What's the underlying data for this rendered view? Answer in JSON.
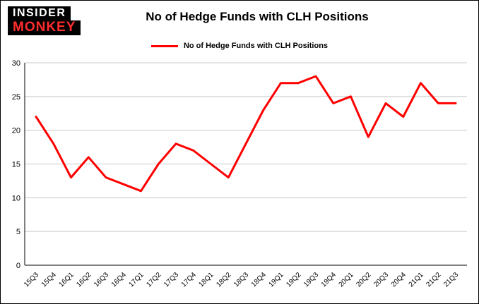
{
  "logo": {
    "line1": "INSIDER",
    "line2": "MONKEY",
    "line2_color": "#ff2d2d"
  },
  "title": "No of Hedge Funds with CLH Positions",
  "legend": {
    "label": "No of Hedge Funds with CLH Positions",
    "color": "#ff0000"
  },
  "chart_data": {
    "type": "line",
    "title": "No of Hedge Funds with CLH Positions",
    "xlabel": "",
    "ylabel": "",
    "categories": [
      "15Q3",
      "15Q4",
      "16Q1",
      "16Q2",
      "16Q3",
      "16Q4",
      "17Q1",
      "17Q2",
      "17Q3",
      "17Q4",
      "18Q1",
      "18Q2",
      "18Q3",
      "18Q4",
      "19Q1",
      "19Q2",
      "19Q3",
      "19Q4",
      "20Q1",
      "20Q2",
      "20Q3",
      "20Q4",
      "21Q1",
      "21Q2",
      "21Q3"
    ],
    "series": [
      {
        "name": "No of Hedge Funds with CLH Positions",
        "color": "#ff0000",
        "values": [
          22,
          18,
          13,
          16,
          13,
          12,
          11,
          15,
          18,
          17,
          15,
          13,
          18,
          23,
          27,
          27,
          28,
          24,
          25,
          19,
          24,
          22,
          27,
          24,
          24
        ]
      }
    ],
    "ylim": [
      0,
      30
    ],
    "ytick_step": 5,
    "grid": true,
    "grid_color": "#c8c8c8",
    "legend_position": "top"
  }
}
